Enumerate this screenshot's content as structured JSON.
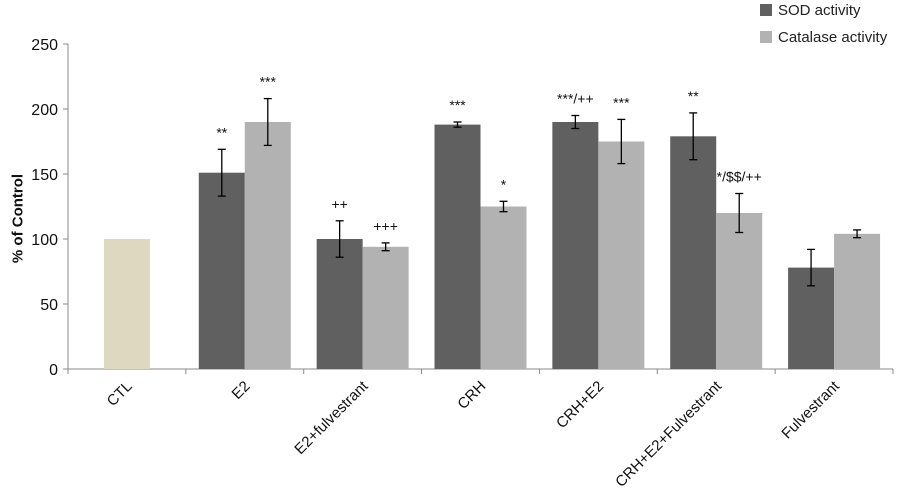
{
  "chart_data": {
    "type": "bar",
    "categories": [
      "CTL",
      "E2",
      "E2+fulvestrant",
      "CRH",
      "CRH+E2",
      "CRH+E2+Fulvestrant",
      "Fulvestrant"
    ],
    "ylabel": "% of Control",
    "ylim": [
      0,
      250
    ],
    "yticks": [
      0,
      50,
      100,
      150,
      200,
      250
    ],
    "control_value": 100,
    "control_color": "#ded8c1",
    "series": [
      {
        "name": "SOD activity",
        "color": "#606060",
        "values": [
          null,
          151,
          100,
          188,
          190,
          179,
          78
        ],
        "errors": [
          null,
          18,
          14,
          2,
          5,
          18,
          14
        ],
        "annotations": [
          "",
          "**",
          "++",
          "***",
          "***/++",
          "**",
          ""
        ]
      },
      {
        "name": "Catalase activity",
        "color": "#b2b2b2",
        "values": [
          null,
          190,
          94,
          125,
          175,
          120,
          104
        ],
        "errors": [
          null,
          18,
          3,
          4,
          17,
          15,
          3
        ],
        "annotations": [
          "",
          "***",
          "+++",
          "*",
          "***",
          "*/$$/++",
          ""
        ]
      }
    ],
    "legend_position": "top-right",
    "grid": false
  }
}
